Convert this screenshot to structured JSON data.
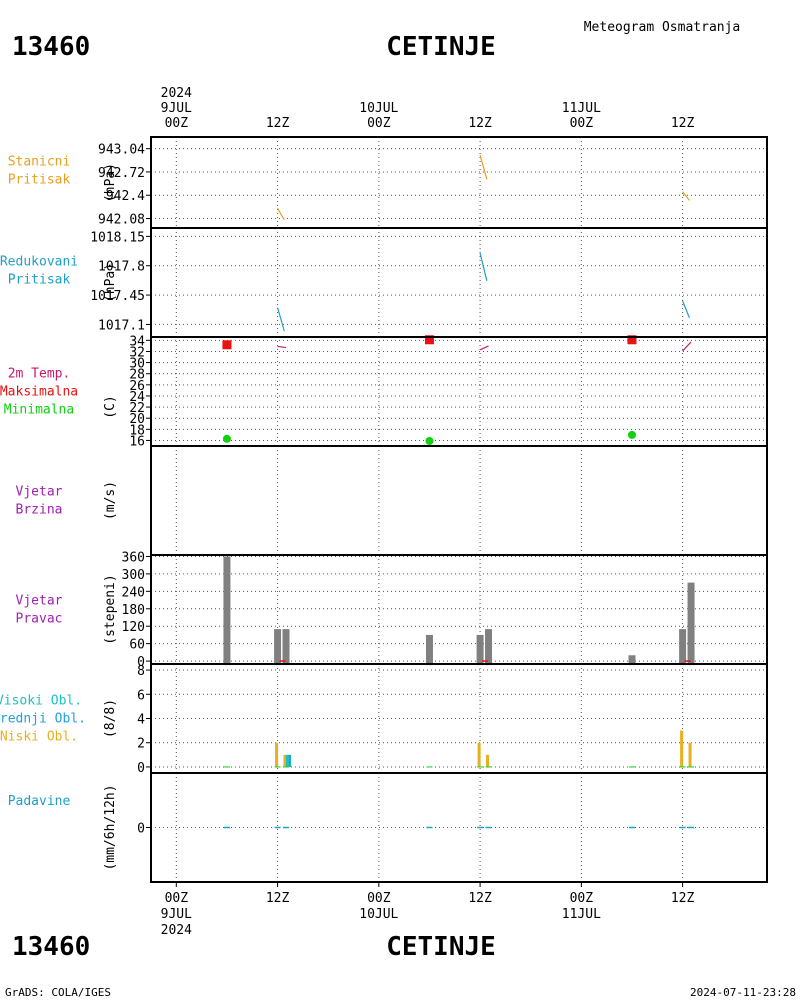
{
  "header": {
    "station_id": "13460",
    "station_name": "CETINJE",
    "product": "Meteogram Osmatranja"
  },
  "footer": {
    "credit": "GrADS: COLA/IGES",
    "timestamp": "2024-07-11-23:28"
  },
  "time_axis": {
    "top": [
      {
        "t": 0,
        "lines": [
          "2024",
          "9JUL",
          "00Z"
        ]
      },
      {
        "t": 12,
        "lines": [
          "12Z"
        ]
      },
      {
        "t": 24,
        "lines": [
          "10JUL",
          "00Z"
        ]
      },
      {
        "t": 36,
        "lines": [
          "12Z"
        ]
      },
      {
        "t": 48,
        "lines": [
          "11JUL",
          "00Z"
        ]
      },
      {
        "t": 60,
        "lines": [
          "12Z"
        ]
      }
    ],
    "bottom": [
      {
        "t": 0,
        "lines": [
          "00Z",
          "9JUL",
          "2024"
        ]
      },
      {
        "t": 12,
        "lines": [
          "12Z"
        ]
      },
      {
        "t": 24,
        "lines": [
          "00Z",
          "10JUL"
        ]
      },
      {
        "t": 36,
        "lines": [
          "12Z"
        ]
      },
      {
        "t": 48,
        "lines": [
          "00Z",
          "11JUL"
        ]
      },
      {
        "t": 60,
        "lines": [
          "12Z"
        ]
      }
    ],
    "range_hours": [
      -3,
      70
    ]
  },
  "colors": {
    "station_pressure": "#e8a020",
    "reduced_pressure": "#1ea0c8",
    "temp_2m": "#c8186e",
    "temp_max": "#e81010",
    "temp_min": "#10d010",
    "wind": "#a020b0",
    "wind_dir_bar": "#808080",
    "cloud_high": "#20c0c0",
    "cloud_mid": "#20a0e0",
    "cloud_low": "#e8b020",
    "precip": "#20a0c8",
    "grid": "#808080"
  },
  "chart_data": [
    {
      "id": "station_pressure",
      "type": "line",
      "title_lines": [
        "Stanicni",
        "Pritisak"
      ],
      "title_color": "#e8a020",
      "ylabel": "(hPa)",
      "ylim": [
        941.95,
        943.2
      ],
      "yticks": [
        942.08,
        942.4,
        942.72,
        943.04
      ],
      "ytick_labels": [
        "942.08",
        "942.4",
        "942.72",
        "943.04"
      ],
      "series": [
        {
          "x": [
            12,
            12.8
          ],
          "y": [
            942.22,
            942.06
          ]
        },
        {
          "x": [
            36,
            36.8
          ],
          "y": [
            942.95,
            942.62
          ]
        },
        {
          "x": [
            60,
            60.8
          ],
          "y": [
            942.45,
            942.33
          ]
        }
      ]
    },
    {
      "id": "reduced_pressure",
      "type": "line",
      "title_lines": [
        "Redukovani",
        "Pritisak"
      ],
      "title_color": "#1ea0c8",
      "ylabel": "(hPa)",
      "ylim": [
        1016.95,
        1018.25
      ],
      "yticks": [
        1017.1,
        1017.45,
        1017.8,
        1018.15
      ],
      "ytick_labels": [
        "1017.1",
        "1017.45",
        "1017.8",
        "1018.15"
      ],
      "series": [
        {
          "x": [
            12,
            12.8
          ],
          "y": [
            1017.3,
            1017.02
          ]
        },
        {
          "x": [
            36,
            36.8
          ],
          "y": [
            1017.95,
            1017.62
          ]
        },
        {
          "x": [
            60,
            60.8
          ],
          "y": [
            1017.38,
            1017.18
          ]
        }
      ]
    },
    {
      "id": "temperature",
      "type": "line+scatter",
      "title_lines": [
        "2m Temp.",
        "Maksimalna",
        "Minimalna"
      ],
      "title_colors": [
        "#c8186e",
        "#e81010",
        "#10d010"
      ],
      "ylabel": "(C)",
      "ylim": [
        15.0,
        34.6
      ],
      "yticks": [
        16,
        18,
        20,
        22,
        24,
        26,
        28,
        30,
        32,
        34
      ],
      "ytick_labels": [
        "16",
        "18",
        "20",
        "22",
        "24",
        "26",
        "28",
        "30",
        "32",
        "34"
      ],
      "series": [
        {
          "name": "2m Temp.",
          "x": [
            12,
            13,
            36,
            37,
            60,
            61
          ],
          "y": [
            32.9,
            32.7,
            32.3,
            33.0,
            32.1,
            33.7
          ],
          "segments": [
            [
              0,
              1
            ],
            [
              2,
              3
            ],
            [
              4,
              5
            ]
          ]
        },
        {
          "name": "Maksimalna",
          "x": [
            6,
            30,
            54
          ],
          "y": [
            33.2,
            34.1,
            34.1
          ]
        },
        {
          "name": "Minimalna",
          "x": [
            6,
            30,
            54
          ],
          "y": [
            16.3,
            15.9,
            17.0
          ]
        }
      ]
    },
    {
      "id": "wind_speed",
      "type": "line",
      "title_lines": [
        "Vjetar",
        "Brzina"
      ],
      "title_color": "#a020b0",
      "ylabel": "(m/s)",
      "ylim": [
        0,
        1
      ],
      "yticks": [],
      "ytick_labels": [],
      "series": []
    },
    {
      "id": "wind_direction",
      "type": "bar",
      "title_lines": [
        "Vjetar",
        "Pravac"
      ],
      "title_color": "#a020b0",
      "ylabel": "(stepeni)",
      "ylim": [
        -10,
        365
      ],
      "yticks": [
        0,
        60,
        120,
        180,
        240,
        300,
        360
      ],
      "ytick_labels": [
        "0",
        "60",
        "120",
        "180",
        "240",
        "300",
        "360"
      ],
      "x": [
        6,
        12,
        13,
        30,
        36,
        37,
        54,
        60,
        61
      ],
      "values": [
        360,
        110,
        110,
        90,
        90,
        110,
        20,
        110,
        270
      ]
    },
    {
      "id": "clouds",
      "type": "bar",
      "title_lines": [
        "Visoki Obl.",
        "Srednji Obl.",
        "Niski Obl."
      ],
      "title_colors": [
        "#20c0c0",
        "#20a0e0",
        "#e8b020"
      ],
      "ylabel": "(8/8)",
      "ylim": [
        -0.5,
        8.5
      ],
      "yticks": [
        0,
        2,
        4,
        6,
        8
      ],
      "ytick_labels": [
        "0",
        "2",
        "4",
        "6",
        "8"
      ],
      "x": [
        6,
        12,
        13,
        30,
        36,
        37,
        54,
        60,
        61
      ],
      "series": [
        {
          "name": "Visoki Obl.",
          "values": [
            0,
            0,
            1,
            0,
            0,
            0,
            0,
            0,
            0
          ]
        },
        {
          "name": "Srednji Obl.",
          "values": [
            0,
            0,
            1,
            0,
            0,
            0,
            0,
            0,
            0
          ]
        },
        {
          "name": "Niski Obl.",
          "values": [
            0,
            2,
            1,
            0,
            2,
            1,
            0,
            3,
            2
          ]
        }
      ]
    },
    {
      "id": "precipitation",
      "type": "bar",
      "title_lines": [
        "Padavine"
      ],
      "title_color": "#20a0c8",
      "ylabel": "(mm/6h/12h)",
      "ylim": [
        -5,
        5
      ],
      "yticks": [
        0
      ],
      "ytick_labels": [
        "0"
      ],
      "x": [
        6,
        12,
        13,
        30,
        36,
        37,
        54,
        60,
        61
      ],
      "values": [
        0,
        0,
        0,
        0,
        0,
        0,
        0,
        0,
        0
      ]
    }
  ]
}
